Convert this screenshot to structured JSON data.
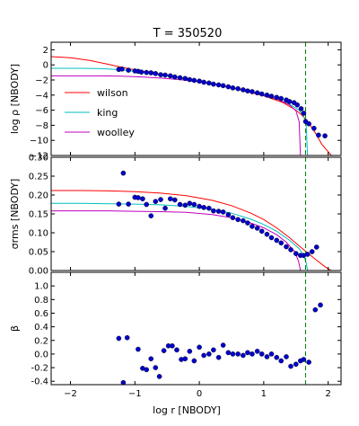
{
  "figure_title": "T = 350520",
  "shared_xlabel": "log r [NBODY]",
  "colors": {
    "wilson": "#ff0000",
    "king": "#00bfbf",
    "woolley": "#bf00bf",
    "points": "#0000cc",
    "vline": "#008000"
  },
  "chart_data": [
    {
      "type": "line",
      "panel": "density",
      "ylabel": "log ρ [NBODY]",
      "xlim": [
        -2.3,
        2.2
      ],
      "ylim": [
        -12,
        3
      ],
      "yticks": [
        -12,
        -10,
        -8,
        -6,
        -4,
        -2,
        0,
        2
      ],
      "grid": false,
      "legend": {
        "placement": "left",
        "entries": [
          "wilson",
          "king",
          "woolley"
        ]
      },
      "vline_x": 1.65,
      "series": [
        {
          "name": "wilson",
          "color": "#ff0000",
          "x": [
            -2.3,
            -2.0,
            -1.7,
            -1.4,
            -1.1,
            -0.8,
            -0.5,
            -0.2,
            0.1,
            0.4,
            0.7,
            1.0,
            1.3,
            1.5,
            1.6,
            1.7,
            1.8,
            1.9,
            2.0,
            2.05
          ],
          "y": [
            1.1,
            0.95,
            0.6,
            0.05,
            -0.5,
            -0.95,
            -1.4,
            -1.85,
            -2.35,
            -2.85,
            -3.45,
            -4.1,
            -5.0,
            -6.0,
            -6.7,
            -7.7,
            -9.0,
            -10.5,
            -11.5,
            -12
          ]
        },
        {
          "name": "king",
          "color": "#00bfbf",
          "x": [
            -2.3,
            -1.8,
            -1.5,
            -1.2,
            -0.9,
            -0.6,
            -0.3,
            0.0,
            0.3,
            0.6,
            0.9,
            1.2,
            1.4,
            1.55,
            1.62,
            1.66,
            1.68
          ],
          "y": [
            -0.45,
            -0.45,
            -0.5,
            -0.65,
            -0.95,
            -1.35,
            -1.75,
            -2.2,
            -2.7,
            -3.25,
            -3.8,
            -4.5,
            -5.2,
            -6.0,
            -6.8,
            -8.0,
            -12
          ]
        },
        {
          "name": "woolley",
          "color": "#bf00bf",
          "x": [
            -2.3,
            -1.8,
            -1.5,
            -1.2,
            -0.9,
            -0.6,
            -0.3,
            0.0,
            0.3,
            0.6,
            0.9,
            1.2,
            1.4,
            1.5,
            1.55,
            1.57
          ],
          "y": [
            -1.45,
            -1.45,
            -1.45,
            -1.5,
            -1.6,
            -1.75,
            -1.95,
            -2.25,
            -2.7,
            -3.2,
            -3.8,
            -4.5,
            -5.3,
            -6.1,
            -7.5,
            -12
          ]
        }
      ],
      "points": {
        "x": [
          -1.25,
          -1.2,
          -1.1,
          -1.0,
          -0.95,
          -0.9,
          -0.82,
          -0.75,
          -0.68,
          -0.6,
          -0.53,
          -0.45,
          -0.38,
          -0.3,
          -0.22,
          -0.15,
          -0.08,
          0.0,
          0.07,
          0.15,
          0.22,
          0.3,
          0.37,
          0.45,
          0.52,
          0.6,
          0.68,
          0.75,
          0.82,
          0.9,
          0.97,
          1.05,
          1.12,
          1.2,
          1.27,
          1.35,
          1.4,
          1.47,
          1.52,
          1.58,
          1.62,
          1.65,
          1.7,
          1.78,
          1.85,
          1.95
        ],
        "y": [
          -0.6,
          -0.55,
          -0.7,
          -0.8,
          -0.85,
          -0.95,
          -1.0,
          -1.05,
          -1.15,
          -1.3,
          -1.35,
          -1.45,
          -1.6,
          -1.7,
          -1.8,
          -1.95,
          -2.05,
          -2.15,
          -2.3,
          -2.4,
          -2.55,
          -2.65,
          -2.75,
          -2.9,
          -3.05,
          -3.15,
          -3.3,
          -3.45,
          -3.55,
          -3.7,
          -3.85,
          -4.0,
          -4.15,
          -4.3,
          -4.45,
          -4.65,
          -4.85,
          -5.0,
          -5.3,
          -5.8,
          -6.4,
          -7.5,
          -7.8,
          -8.4,
          -9.3,
          -9.4
        ]
      }
    },
    {
      "type": "line",
      "panel": "dispersion",
      "ylabel": "σrms [NBODY]",
      "xlim": [
        -2.3,
        2.2
      ],
      "ylim": [
        0,
        0.3
      ],
      "yticks": [
        0.0,
        0.05,
        0.1,
        0.15,
        0.2,
        0.25,
        0.3
      ],
      "yticklabels": [
        "0.00",
        "0.05",
        "0.10",
        "0.15",
        "0.20",
        "0.25",
        "0.30"
      ],
      "grid": false,
      "vline_x": 1.65,
      "series": [
        {
          "name": "wilson",
          "color": "#ff0000",
          "x": [
            -2.3,
            -1.8,
            -1.4,
            -1.0,
            -0.6,
            -0.2,
            0.2,
            0.5,
            0.8,
            1.0,
            1.2,
            1.4,
            1.6,
            1.8,
            1.95,
            2.05
          ],
          "y": [
            0.212,
            0.212,
            0.211,
            0.209,
            0.205,
            0.198,
            0.186,
            0.172,
            0.152,
            0.135,
            0.113,
            0.087,
            0.058,
            0.03,
            0.01,
            0.0
          ]
        },
        {
          "name": "king",
          "color": "#00bfbf",
          "x": [
            -2.3,
            -1.8,
            -1.4,
            -1.0,
            -0.6,
            -0.2,
            0.2,
            0.5,
            0.8,
            1.0,
            1.2,
            1.4,
            1.55,
            1.62,
            1.66,
            1.68
          ],
          "y": [
            0.178,
            0.178,
            0.177,
            0.176,
            0.174,
            0.17,
            0.162,
            0.152,
            0.136,
            0.122,
            0.104,
            0.08,
            0.058,
            0.04,
            0.02,
            0.0
          ]
        },
        {
          "name": "woolley",
          "color": "#bf00bf",
          "x": [
            -2.3,
            -1.8,
            -1.4,
            -1.0,
            -0.6,
            -0.2,
            0.2,
            0.5,
            0.8,
            1.0,
            1.2,
            1.35,
            1.48,
            1.54,
            1.57
          ],
          "y": [
            0.158,
            0.158,
            0.158,
            0.157,
            0.156,
            0.154,
            0.148,
            0.14,
            0.126,
            0.113,
            0.095,
            0.075,
            0.05,
            0.025,
            0.0
          ]
        }
      ],
      "points": {
        "x": [
          -1.25,
          -1.18,
          -1.1,
          -1.0,
          -0.95,
          -0.88,
          -0.82,
          -0.75,
          -0.68,
          -0.6,
          -0.53,
          -0.45,
          -0.38,
          -0.3,
          -0.22,
          -0.15,
          -0.08,
          0.0,
          0.07,
          0.15,
          0.22,
          0.3,
          0.37,
          0.45,
          0.52,
          0.6,
          0.68,
          0.75,
          0.82,
          0.9,
          0.97,
          1.05,
          1.12,
          1.2,
          1.27,
          1.35,
          1.42,
          1.5,
          1.57,
          1.62,
          1.68,
          1.75,
          1.82
        ],
        "y": [
          0.176,
          0.258,
          0.176,
          0.194,
          0.193,
          0.19,
          0.175,
          0.145,
          0.183,
          0.188,
          0.165,
          0.19,
          0.187,
          0.175,
          0.173,
          0.178,
          0.175,
          0.17,
          0.167,
          0.165,
          0.158,
          0.157,
          0.155,
          0.148,
          0.14,
          0.135,
          0.132,
          0.126,
          0.117,
          0.112,
          0.104,
          0.096,
          0.087,
          0.08,
          0.073,
          0.063,
          0.055,
          0.045,
          0.04,
          0.04,
          0.043,
          0.05,
          0.062
        ]
      }
    },
    {
      "type": "scatter",
      "panel": "anisotropy",
      "ylabel": "β",
      "xlim": [
        -2.3,
        2.2
      ],
      "ylim": [
        -0.45,
        1.2
      ],
      "yticks": [
        -0.4,
        -0.2,
        0.0,
        0.2,
        0.4,
        0.6,
        0.8,
        1.0
      ],
      "yticklabels": [
        "-0.4",
        "-0.2",
        "0.0",
        "0.2",
        "0.4",
        "0.6",
        "0.8",
        "1.0"
      ],
      "grid": false,
      "vline_x": 1.65,
      "points": {
        "x": [
          -1.25,
          -1.18,
          -1.12,
          -0.95,
          -0.88,
          -0.82,
          -0.75,
          -0.68,
          -0.62,
          -0.55,
          -0.48,
          -0.42,
          -0.35,
          -0.28,
          -0.22,
          -0.15,
          -0.08,
          0.0,
          0.07,
          0.15,
          0.22,
          0.3,
          0.37,
          0.45,
          0.52,
          0.6,
          0.68,
          0.75,
          0.82,
          0.9,
          0.97,
          1.05,
          1.12,
          1.2,
          1.27,
          1.35,
          1.42,
          1.5,
          1.57,
          1.62,
          1.7,
          1.8,
          1.88
        ],
        "y": [
          0.23,
          -0.42,
          0.24,
          0.07,
          -0.21,
          -0.23,
          -0.07,
          -0.2,
          -0.33,
          0.05,
          0.12,
          0.12,
          0.06,
          -0.08,
          -0.07,
          0.04,
          -0.1,
          0.1,
          -0.02,
          0.0,
          0.06,
          -0.05,
          0.13,
          0.02,
          0.0,
          0.0,
          -0.02,
          0.02,
          0.0,
          0.04,
          0.0,
          -0.04,
          0.0,
          -0.05,
          -0.1,
          -0.04,
          -0.18,
          -0.15,
          -0.1,
          -0.08,
          -0.12,
          0.65,
          0.72
        ]
      }
    }
  ],
  "shared_xaxis": {
    "xticks": [
      -2,
      -1,
      0,
      1,
      2
    ],
    "xticklabels": [
      "−2",
      "−1",
      "0",
      "1",
      "2"
    ]
  }
}
